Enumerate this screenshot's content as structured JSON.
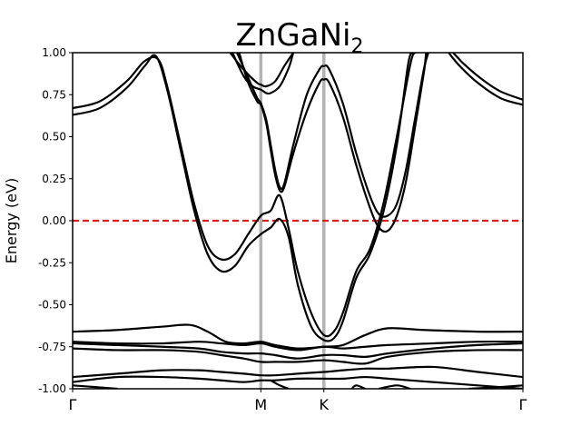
{
  "chart_data": {
    "type": "line",
    "title": "ZnGaNi",
    "title_subscript": "2",
    "ylabel": "Energy (eV)",
    "xlabel": "",
    "ylim": [
      -1.0,
      1.0
    ],
    "yticks": [
      -1.0,
      -0.75,
      -0.5,
      -0.25,
      0.0,
      0.25,
      0.5,
      0.75,
      1.0
    ],
    "ytick_labels": [
      "-1.00",
      "-0.75",
      "-0.50",
      "-0.25",
      "0.00",
      "0.25",
      "0.50",
      "0.75",
      "1.00"
    ],
    "xlim": [
      0,
      1
    ],
    "kpoints": [
      {
        "label": "Γ",
        "x": 0.0
      },
      {
        "label": "M",
        "x": 0.418
      },
      {
        "label": "K",
        "x": 0.558
      },
      {
        "label": "Γ",
        "x": 1.0
      }
    ],
    "fermi_level": {
      "energy": 0.0,
      "color": "#e41a1c",
      "style": "dashed"
    },
    "vline_color": "#b3b3b3",
    "band_color": "#000000",
    "grid": false,
    "series": [
      {
        "values": [
          [
            0,
            0.67
          ],
          [
            0.06,
            0.71
          ],
          [
            0.12,
            0.83
          ],
          [
            0.16,
            0.95
          ],
          [
            0.19,
            0.96
          ],
          [
            0.21,
            0.8
          ],
          [
            0.24,
            0.45
          ],
          [
            0.27,
            0.1
          ],
          [
            0.3,
            -0.15
          ],
          [
            0.33,
            -0.23
          ],
          [
            0.36,
            -0.2
          ],
          [
            0.39,
            -0.08
          ],
          [
            0.418,
            0.03
          ],
          [
            0.44,
            0.06
          ],
          [
            0.46,
            0.15
          ],
          [
            0.48,
            -0.05
          ],
          [
            0.5,
            -0.3
          ],
          [
            0.53,
            -0.55
          ],
          [
            0.558,
            -0.68
          ],
          [
            0.58,
            -0.66
          ],
          [
            0.6,
            -0.55
          ],
          [
            0.63,
            -0.3
          ],
          [
            0.66,
            -0.17
          ],
          [
            0.69,
            0.1
          ],
          [
            0.72,
            0.5
          ],
          [
            0.75,
            0.93
          ],
          [
            0.76,
            1.0
          ]
        ]
      },
      {
        "values": [
          [
            0,
            0.63
          ],
          [
            0.06,
            0.67
          ],
          [
            0.12,
            0.79
          ],
          [
            0.16,
            0.92
          ],
          [
            0.185,
            0.98
          ],
          [
            0.21,
            0.78
          ],
          [
            0.24,
            0.42
          ],
          [
            0.27,
            0.06
          ],
          [
            0.3,
            -0.2
          ],
          [
            0.33,
            -0.3
          ],
          [
            0.36,
            -0.27
          ],
          [
            0.39,
            -0.15
          ],
          [
            0.418,
            -0.08
          ],
          [
            0.44,
            -0.04
          ],
          [
            0.46,
            0.01
          ],
          [
            0.48,
            -0.1
          ],
          [
            0.5,
            -0.38
          ],
          [
            0.53,
            -0.63
          ],
          [
            0.558,
            -0.71
          ],
          [
            0.58,
            -0.7
          ],
          [
            0.6,
            -0.6
          ],
          [
            0.63,
            -0.34
          ],
          [
            0.66,
            -0.2
          ],
          [
            0.69,
            0.05
          ],
          [
            0.72,
            0.45
          ],
          [
            0.745,
            0.93
          ],
          [
            0.755,
            1.0
          ]
        ]
      },
      {
        "values": [
          [
            0.35,
            1.0
          ],
          [
            0.37,
            0.93
          ],
          [
            0.39,
            0.87
          ],
          [
            0.41,
            0.82
          ],
          [
            0.418,
            0.81
          ],
          [
            0.43,
            0.8
          ],
          [
            0.45,
            0.83
          ],
          [
            0.47,
            0.92
          ],
          [
            0.49,
            1.0
          ]
        ]
      },
      {
        "values": [
          [
            0.355,
            1.0
          ],
          [
            0.38,
            0.86
          ],
          [
            0.4,
            0.8
          ],
          [
            0.418,
            0.78
          ],
          [
            0.43,
            0.76
          ],
          [
            0.44,
            0.76
          ],
          [
            0.46,
            0.8
          ],
          [
            0.48,
            0.91
          ],
          [
            0.49,
            1.0
          ]
        ]
      },
      {
        "values": [
          [
            0.365,
            1.0
          ],
          [
            0.39,
            0.85
          ],
          [
            0.41,
            0.73
          ],
          [
            0.418,
            0.7
          ],
          [
            0.43,
            0.6
          ],
          [
            0.44,
            0.45
          ],
          [
            0.45,
            0.3
          ],
          [
            0.46,
            0.2
          ],
          [
            0.47,
            0.22
          ],
          [
            0.49,
            0.45
          ],
          [
            0.52,
            0.75
          ],
          [
            0.548,
            0.9
          ],
          [
            0.558,
            0.92
          ],
          [
            0.57,
            0.9
          ],
          [
            0.6,
            0.7
          ],
          [
            0.63,
            0.4
          ],
          [
            0.66,
            0.15
          ],
          [
            0.68,
            0.04
          ],
          [
            0.7,
            0.03
          ],
          [
            0.72,
            0.1
          ],
          [
            0.74,
            0.3
          ],
          [
            0.76,
            0.6
          ],
          [
            0.78,
            0.9
          ],
          [
            0.79,
            1.0
          ]
        ]
      },
      {
        "values": [
          [
            0.37,
            1.0
          ],
          [
            0.39,
            0.82
          ],
          [
            0.41,
            0.71
          ],
          [
            0.418,
            0.69
          ],
          [
            0.43,
            0.58
          ],
          [
            0.44,
            0.42
          ],
          [
            0.45,
            0.27
          ],
          [
            0.46,
            0.18
          ],
          [
            0.47,
            0.2
          ],
          [
            0.49,
            0.4
          ],
          [
            0.52,
            0.65
          ],
          [
            0.548,
            0.82
          ],
          [
            0.558,
            0.84
          ],
          [
            0.57,
            0.82
          ],
          [
            0.6,
            0.62
          ],
          [
            0.63,
            0.33
          ],
          [
            0.66,
            0.08
          ],
          [
            0.68,
            -0.04
          ],
          [
            0.7,
            -0.06
          ],
          [
            0.72,
            0.03
          ],
          [
            0.74,
            0.23
          ],
          [
            0.76,
            0.55
          ],
          [
            0.78,
            0.88
          ],
          [
            0.785,
            1.0
          ]
        ]
      },
      {
        "values": [
          [
            0.845,
            1.0
          ],
          [
            0.87,
            0.93
          ],
          [
            0.91,
            0.84
          ],
          [
            0.95,
            0.77
          ],
          [
            1.0,
            0.72
          ]
        ]
      },
      {
        "values": [
          [
            0.835,
            1.0
          ],
          [
            0.86,
            0.92
          ],
          [
            0.9,
            0.82
          ],
          [
            0.95,
            0.73
          ],
          [
            1.0,
            0.69
          ]
        ]
      },
      {
        "values": [
          [
            0,
            -0.66
          ],
          [
            0.1,
            -0.65
          ],
          [
            0.2,
            -0.63
          ],
          [
            0.26,
            -0.62
          ],
          [
            0.3,
            -0.66
          ],
          [
            0.34,
            -0.72
          ],
          [
            0.38,
            -0.73
          ],
          [
            0.418,
            -0.72
          ],
          [
            0.45,
            -0.74
          ],
          [
            0.5,
            -0.76
          ],
          [
            0.558,
            -0.75
          ],
          [
            0.6,
            -0.74
          ],
          [
            0.65,
            -0.68
          ],
          [
            0.7,
            -0.64
          ],
          [
            0.78,
            -0.65
          ],
          [
            0.9,
            -0.66
          ],
          [
            1.0,
            -0.66
          ]
        ]
      },
      {
        "values": [
          [
            0,
            -0.72
          ],
          [
            0.1,
            -0.73
          ],
          [
            0.2,
            -0.73
          ],
          [
            0.28,
            -0.72
          ],
          [
            0.33,
            -0.73
          ],
          [
            0.38,
            -0.74
          ],
          [
            0.418,
            -0.73
          ],
          [
            0.45,
            -0.75
          ],
          [
            0.5,
            -0.77
          ],
          [
            0.558,
            -0.75
          ],
          [
            0.6,
            -0.76
          ],
          [
            0.65,
            -0.75
          ],
          [
            0.7,
            -0.74
          ],
          [
            0.8,
            -0.73
          ],
          [
            0.9,
            -0.72
          ],
          [
            1.0,
            -0.72
          ]
        ]
      },
      {
        "values": [
          [
            0,
            -0.73
          ],
          [
            0.1,
            -0.74
          ],
          [
            0.2,
            -0.75
          ],
          [
            0.28,
            -0.76
          ],
          [
            0.33,
            -0.78
          ],
          [
            0.38,
            -0.79
          ],
          [
            0.418,
            -0.79
          ],
          [
            0.45,
            -0.8
          ],
          [
            0.5,
            -0.82
          ],
          [
            0.558,
            -0.8
          ],
          [
            0.6,
            -0.8
          ],
          [
            0.65,
            -0.81
          ],
          [
            0.7,
            -0.79
          ],
          [
            0.8,
            -0.76
          ],
          [
            0.9,
            -0.74
          ],
          [
            1.0,
            -0.73
          ]
        ]
      },
      {
        "values": [
          [
            0,
            -0.76
          ],
          [
            0.1,
            -0.77
          ],
          [
            0.2,
            -0.77
          ],
          [
            0.28,
            -0.78
          ],
          [
            0.33,
            -0.8
          ],
          [
            0.38,
            -0.82
          ],
          [
            0.418,
            -0.84
          ],
          [
            0.45,
            -0.84
          ],
          [
            0.5,
            -0.84
          ],
          [
            0.558,
            -0.83
          ],
          [
            0.6,
            -0.84
          ],
          [
            0.65,
            -0.85
          ],
          [
            0.7,
            -0.81
          ],
          [
            0.8,
            -0.78
          ],
          [
            0.9,
            -0.77
          ],
          [
            1.0,
            -0.77
          ]
        ]
      },
      {
        "values": [
          [
            0,
            -0.93
          ],
          [
            0.1,
            -0.91
          ],
          [
            0.2,
            -0.89
          ],
          [
            0.28,
            -0.89
          ],
          [
            0.33,
            -0.9
          ],
          [
            0.38,
            -0.91
          ],
          [
            0.418,
            -0.92
          ],
          [
            0.45,
            -0.92
          ],
          [
            0.5,
            -0.91
          ],
          [
            0.558,
            -0.9
          ],
          [
            0.6,
            -0.89
          ],
          [
            0.65,
            -0.88
          ],
          [
            0.7,
            -0.88
          ],
          [
            0.8,
            -0.87
          ],
          [
            0.9,
            -0.9
          ],
          [
            1.0,
            -0.93
          ]
        ]
      },
      {
        "values": [
          [
            0,
            -0.96
          ],
          [
            0.1,
            -0.93
          ],
          [
            0.2,
            -0.93
          ],
          [
            0.28,
            -0.94
          ],
          [
            0.33,
            -0.95
          ],
          [
            0.38,
            -0.96
          ],
          [
            0.418,
            -0.95
          ],
          [
            0.45,
            -0.95
          ],
          [
            0.5,
            -0.94
          ],
          [
            0.558,
            -0.94
          ],
          [
            0.6,
            -0.94
          ],
          [
            0.65,
            -0.93
          ],
          [
            0.7,
            -0.94
          ],
          [
            0.8,
            -0.96
          ],
          [
            0.9,
            -0.98
          ],
          [
            1.0,
            -1.0
          ]
        ]
      },
      {
        "values": [
          [
            0,
            -0.98
          ],
          [
            0.05,
            -0.99
          ],
          [
            0.1,
            -1.0
          ]
        ]
      },
      {
        "values": [
          [
            0.44,
            -0.95
          ],
          [
            0.46,
            -0.98
          ],
          [
            0.48,
            -1.0
          ]
        ]
      },
      {
        "values": [
          [
            0.62,
            -1.0
          ],
          [
            0.63,
            -0.98
          ],
          [
            0.65,
            -1.0
          ]
        ]
      },
      {
        "values": [
          [
            0.68,
            -1.0
          ],
          [
            0.72,
            -0.98
          ],
          [
            0.75,
            -1.0
          ]
        ]
      },
      {
        "values": [
          [
            0.88,
            -1.0
          ],
          [
            0.95,
            -0.99
          ],
          [
            1.0,
            -0.98
          ]
        ]
      }
    ]
  }
}
